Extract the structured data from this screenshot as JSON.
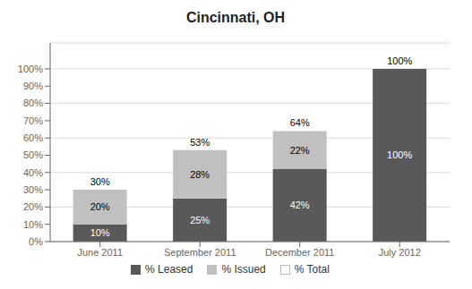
{
  "chart_data": {
    "type": "bar",
    "title": "Cincinnati, OH",
    "stacked": true,
    "data_labels": true,
    "grid": true,
    "legend": "bottom",
    "categories": [
      "June 2011",
      "September 2011",
      "December 2011",
      "July 2012"
    ],
    "series": [
      {
        "name": "% Leased",
        "color": "#595959",
        "values": [
          10,
          25,
          42,
          100
        ],
        "value_labels": [
          "10%",
          "25%",
          "42%",
          "100%"
        ]
      },
      {
        "name": "% Issued",
        "color": "#c0c0c0",
        "values": [
          20,
          28,
          22,
          0
        ],
        "value_labels": [
          "20%",
          "28%",
          "22%",
          null
        ]
      }
    ],
    "totals": {
      "name": "% Total",
      "values": [
        30,
        53,
        64,
        100
      ],
      "value_labels": [
        "30%",
        "53%",
        "64%",
        "100%"
      ]
    },
    "ylim": [
      0,
      115
    ],
    "yticks": [
      {
        "value": 0,
        "label": "0%"
      },
      {
        "value": 10,
        "label": "10%"
      },
      {
        "value": 20,
        "label": "20%"
      },
      {
        "value": 30,
        "label": "30%"
      },
      {
        "value": 40,
        "label": "40%"
      },
      {
        "value": 50,
        "label": "50%"
      },
      {
        "value": 60,
        "label": "60%"
      },
      {
        "value": 70,
        "label": "70%"
      },
      {
        "value": 80,
        "label": "80%"
      },
      {
        "value": 90,
        "label": "90%"
      },
      {
        "value": 100,
        "label": "100%"
      }
    ]
  }
}
